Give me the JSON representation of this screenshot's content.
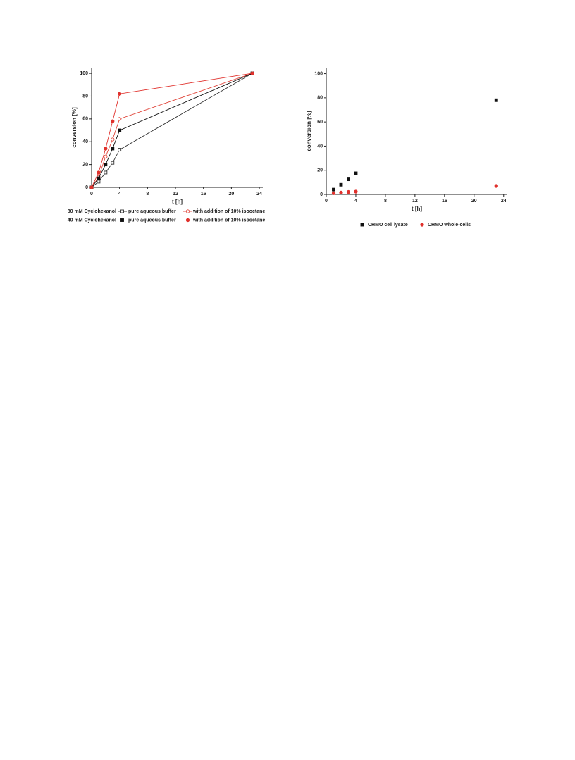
{
  "chart_data": [
    {
      "type": "line",
      "xlabel": "t [h]",
      "ylabel": "conversion [%]",
      "xlim": [
        0,
        24.5
      ],
      "ylim": [
        0,
        105
      ],
      "xticks": [
        0,
        4,
        8,
        12,
        16,
        20,
        24
      ],
      "yticks": [
        0,
        20,
        40,
        60,
        80,
        100
      ],
      "x": [
        0,
        1,
        2,
        3,
        4,
        23
      ],
      "groups": [
        {
          "name": "80 mM Cyclohexanol",
          "series": [
            {
              "name": "pure aqueous buffer",
              "color": "#333333",
              "marker": "square",
              "filled": false,
              "values": [
                0,
                5,
                13,
                21.5,
                33,
                100
              ]
            },
            {
              "name": "with addition of 10% isooctane",
              "color": "#e0453a",
              "marker": "circle",
              "filled": false,
              "values": [
                0,
                9,
                27,
                42,
                60,
                100
              ]
            }
          ]
        },
        {
          "name": "40 mM Cyclohexanol",
          "series": [
            {
              "name": "pure aqueous buffer",
              "color": "#111111",
              "marker": "square",
              "filled": true,
              "values": [
                0,
                8,
                20,
                34,
                50,
                100
              ]
            },
            {
              "name": "with addition of 10% isooctane",
              "color": "#e0312c",
              "marker": "circle",
              "filled": true,
              "values": [
                0,
                13,
                34,
                58,
                82,
                100
              ]
            }
          ]
        }
      ]
    },
    {
      "type": "scatter",
      "xlabel": "t [h]",
      "ylabel": "conversion [%]",
      "xlim": [
        0,
        24.5
      ],
      "ylim": [
        0,
        105
      ],
      "xticks": [
        0,
        4,
        8,
        12,
        16,
        20,
        24
      ],
      "yticks": [
        0,
        20,
        40,
        60,
        80,
        100
      ],
      "series": [
        {
          "name": "CHMO cell lysate",
          "color": "#111111",
          "marker": "square",
          "filled": true,
          "x": [
            1,
            2,
            3,
            4,
            23
          ],
          "values": [
            4,
            8,
            12.5,
            17.5,
            78
          ]
        },
        {
          "name": "CHMO whole-cells",
          "color": "#e0312c",
          "marker": "circle",
          "filled": true,
          "x": [
            1,
            2,
            3,
            4,
            23
          ],
          "values": [
            1,
            1.5,
            2,
            2.3,
            7
          ]
        }
      ]
    }
  ]
}
